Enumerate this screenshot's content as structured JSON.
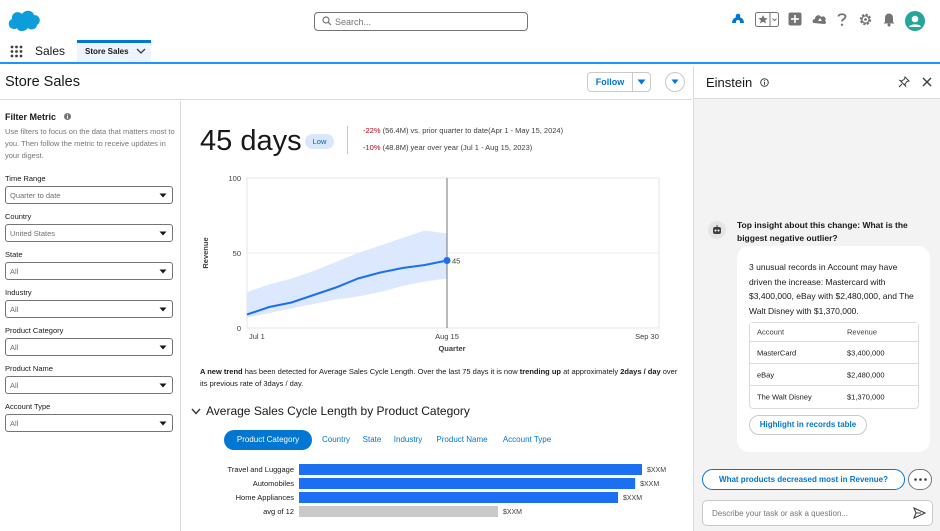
{
  "header": {
    "search_placeholder": "Search...",
    "icons": [
      "cloud-logo",
      "trailhead-icon",
      "favorites-icon",
      "add-icon",
      "setup-assistant-icon",
      "help-icon",
      "settings-icon",
      "notifications-icon",
      "user-avatar"
    ]
  },
  "nav": {
    "app_name": "Sales",
    "tab_label": "Store Sales"
  },
  "page": {
    "title": "Store Sales",
    "follow_label": "Follow"
  },
  "filters": {
    "title": "Filter Metric",
    "description": "Use filters to focus on the data that matters most to you. Then follow the metric to receive updates in your digest.",
    "items": [
      {
        "label": "Time Range",
        "value": "Quarter to date"
      },
      {
        "label": "Country",
        "value": "United States"
      },
      {
        "label": "State",
        "value": "All"
      },
      {
        "label": "Industry",
        "value": "All"
      },
      {
        "label": "Product Category",
        "value": "All"
      },
      {
        "label": "Product Name",
        "value": "All"
      },
      {
        "label": "Account Type",
        "value": "All"
      }
    ]
  },
  "kpi": {
    "value": "45 days",
    "badge": "Low",
    "compare1_pct": "-22%",
    "compare1_text": "(56.4M) vs. prior quarter to date(Apr 1 - May 15, 2024)",
    "compare2_pct": "-10%",
    "compare2_text": "(48.8M) year over year (Jul 1 - Aug 15, 2023)"
  },
  "chart_data": [
    {
      "type": "line",
      "ylabel": "Revenue",
      "xlabel": "Quarter",
      "ylim": [
        0,
        100
      ],
      "yticks": [
        "0",
        "50",
        "100"
      ],
      "xticks": [
        "Jul 1",
        "Aug 15",
        "Sep 30"
      ],
      "x": [
        "Jul 1",
        "Jul 6",
        "Jul 11",
        "Jul 16",
        "Jul 21",
        "Jul 26",
        "Jul 31",
        "Aug 5",
        "Aug 10",
        "Aug 15"
      ],
      "series": [
        {
          "values": [
            9,
            14,
            17,
            22,
            27,
            33,
            37,
            40,
            42,
            45
          ],
          "upper": [
            24,
            29,
            33,
            38,
            44,
            50,
            55,
            60,
            65,
            63
          ],
          "lower": [
            7,
            10,
            13,
            16,
            19,
            21,
            24,
            28,
            31,
            33
          ]
        }
      ],
      "marker_label": "45",
      "colors": {
        "line": "#1b6ff0",
        "band": "#dbe8fd",
        "cursor": "#747474"
      }
    },
    {
      "type": "bar",
      "title": "Average Sales Cycle Length by Product Category",
      "categories": [
        "Travel and Luggage",
        "Automobiles",
        "Home Appliances",
        "avg of 12"
      ],
      "values": [
        100,
        98,
        93,
        58
      ],
      "value_labels": [
        "$XXM",
        "$XXM",
        "$XXM",
        "$XXM"
      ],
      "colors": {
        "bar": "#1b6ff0",
        "avg": "#c9c9c9"
      }
    }
  ],
  "trend_text": {
    "bold1": "A new trend",
    "part1": " has been detected for Average Sales Cycle Length. Over the last 75 days it is now ",
    "bold2": "trending up",
    "part2": " at approximately ",
    "bold3": "2days / day",
    "part3": " over its previous rate of 3days / day."
  },
  "section": {
    "title": "Average Sales Cycle Length by Product Category",
    "pills": [
      "Product Category",
      "Country",
      "State",
      "Industry",
      "Product Name",
      "Account Type"
    ]
  },
  "einstein": {
    "title": "Einstein",
    "question": "Top insight about this change: What is the biggest negative outlier?",
    "answer": "3 unusual records in Account may have driven the increase: Mastercard with $3,400,000, eBay with $2,480,000, and The Walt Disney with $1,370,000.",
    "table_headers": [
      "Account",
      "Revenue"
    ],
    "table_rows": [
      [
        "MasterCard",
        "$3,400,000"
      ],
      [
        "eBay",
        "$2,480,000"
      ],
      [
        "The Walt Disney",
        "$1,370,000"
      ]
    ],
    "highlight_label": "Highlight in records table",
    "suggestion": "What products decreased most in Revenue?",
    "composer_placeholder": "Describe your task or ask a question..."
  },
  "colors": {
    "brand": "#0176d3",
    "accent": "#1b96ff",
    "negative": "#ba0517"
  }
}
